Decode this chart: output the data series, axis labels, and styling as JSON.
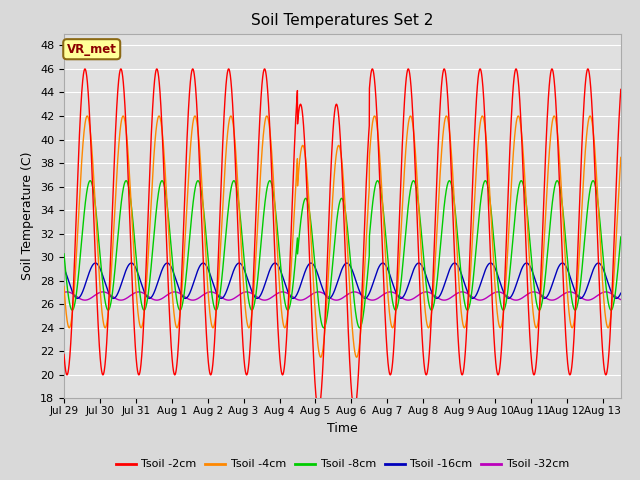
{
  "title": "Soil Temperatures Set 2",
  "xlabel": "Time",
  "ylabel": "Soil Temperature (C)",
  "ylim": [
    18,
    49
  ],
  "yticks": [
    18,
    20,
    22,
    24,
    26,
    28,
    30,
    32,
    34,
    36,
    38,
    40,
    42,
    44,
    46,
    48
  ],
  "background_color": "#d9d9d9",
  "plot_bg_color": "#e0e0e0",
  "grid_color": "#ffffff",
  "legend_label": "VR_met",
  "series": [
    {
      "label": "Tsoil -2cm",
      "color": "#ff0000"
    },
    {
      "label": "Tsoil -4cm",
      "color": "#ff8800"
    },
    {
      "label": "Tsoil -8cm",
      "color": "#00cc00"
    },
    {
      "label": "Tsoil -16cm",
      "color": "#0000bb"
    },
    {
      "label": "Tsoil -32cm",
      "color": "#bb00bb"
    }
  ],
  "date_labels": [
    "Jul 29",
    "Jul 30",
    "Jul 31",
    "Aug 1",
    "Aug 2",
    "Aug 3",
    "Aug 4",
    "Aug 5",
    "Aug 6",
    "Aug 7",
    "Aug 8",
    "Aug 9",
    "Aug 10",
    "Aug 11",
    "Aug 12",
    "Aug 13"
  ],
  "n_days": 15.5,
  "points_per_day": 240
}
